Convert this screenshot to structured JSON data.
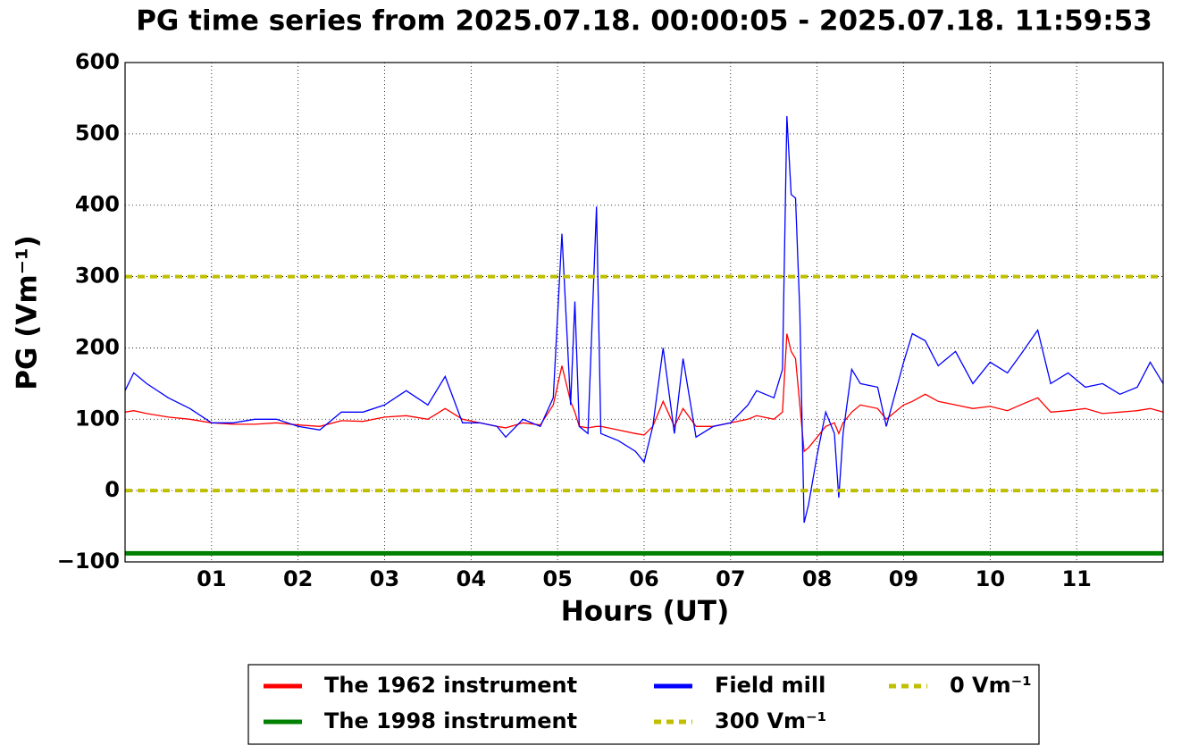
{
  "chart_data": {
    "type": "line",
    "title": "PG time series from 2025.07.18. 00:00:05 - 2025.07.18. 11:59:53",
    "xlabel": "Hours (UT)",
    "ylabel": "PG (Vm⁻¹)",
    "x": [
      0,
      0.1,
      0.25,
      0.5,
      0.75,
      1.0,
      1.25,
      1.5,
      1.75,
      2.0,
      2.25,
      2.5,
      2.75,
      3.0,
      3.25,
      3.5,
      3.7,
      3.9,
      4.1,
      4.3,
      4.4,
      4.6,
      4.8,
      4.95,
      5.05,
      5.15,
      5.2,
      5.25,
      5.35,
      5.45,
      5.5,
      5.7,
      5.9,
      6.0,
      6.1,
      6.22,
      6.35,
      6.45,
      6.6,
      6.8,
      7.0,
      7.2,
      7.3,
      7.5,
      7.6,
      7.65,
      7.7,
      7.75,
      7.8,
      7.85,
      7.9,
      8.0,
      8.1,
      8.2,
      8.25,
      8.3,
      8.4,
      8.5,
      8.7,
      8.8,
      9.0,
      9.1,
      9.25,
      9.4,
      9.6,
      9.8,
      10.0,
      10.2,
      10.35,
      10.55,
      10.7,
      10.9,
      11.1,
      11.3,
      11.5,
      11.7,
      11.85,
      12.0
    ],
    "series": [
      {
        "name": "The 1962 instrument",
        "color": "#ff0000",
        "style": "solid",
        "values": [
          110,
          112,
          108,
          103,
          100,
          95,
          93,
          93,
          95,
          92,
          90,
          98,
          97,
          103,
          105,
          100,
          115,
          100,
          95,
          90,
          88,
          95,
          92,
          120,
          175,
          125,
          110,
          90,
          88,
          90,
          90,
          85,
          80,
          78,
          90,
          125,
          90,
          115,
          90,
          90,
          95,
          100,
          105,
          100,
          110,
          220,
          195,
          185,
          120,
          55,
          60,
          75,
          90,
          95,
          80,
          95,
          110,
          120,
          115,
          100,
          120,
          125,
          135,
          125,
          120,
          115,
          118,
          112,
          120,
          130,
          110,
          112,
          115,
          108,
          110,
          112,
          115,
          110
        ]
      },
      {
        "name": "The 1998 instrument",
        "color": "#008000",
        "style": "solid",
        "x": [
          0,
          12
        ],
        "values": [
          -88,
          -88
        ]
      },
      {
        "name": "Field mill",
        "color": "#0000ff",
        "style": "solid",
        "values": [
          140,
          165,
          150,
          130,
          115,
          95,
          95,
          100,
          100,
          90,
          85,
          110,
          110,
          120,
          140,
          120,
          160,
          95,
          95,
          90,
          75,
          100,
          90,
          130,
          360,
          120,
          265,
          90,
          80,
          398,
          80,
          70,
          55,
          40,
          90,
          200,
          80,
          185,
          75,
          90,
          95,
          120,
          140,
          130,
          170,
          525,
          415,
          410,
          250,
          -45,
          -20,
          50,
          110,
          80,
          -10,
          80,
          170,
          150,
          145,
          90,
          180,
          220,
          210,
          175,
          195,
          150,
          180,
          165,
          190,
          225,
          150,
          165,
          145,
          150,
          135,
          145,
          180,
          150
        ]
      },
      {
        "name": "300 Vm⁻¹",
        "color": "#bfbf00",
        "style": "dotted",
        "x": [
          0,
          12
        ],
        "values": [
          300,
          300
        ]
      },
      {
        "name": "0 Vm⁻¹",
        "color": "#bfbf00",
        "style": "dotted",
        "x": [
          0,
          12
        ],
        "values": [
          0,
          0
        ]
      }
    ],
    "xlim": [
      0,
      12
    ],
    "xticks": [
      {
        "value": 1,
        "label": "01"
      },
      {
        "value": 2,
        "label": "02"
      },
      {
        "value": 3,
        "label": "03"
      },
      {
        "value": 4,
        "label": "04"
      },
      {
        "value": 5,
        "label": "05"
      },
      {
        "value": 6,
        "label": "06"
      },
      {
        "value": 7,
        "label": "07"
      },
      {
        "value": 8,
        "label": "08"
      },
      {
        "value": 9,
        "label": "09"
      },
      {
        "value": 10,
        "label": "10"
      },
      {
        "value": 11,
        "label": "11"
      }
    ],
    "ylim": [
      -100,
      600
    ],
    "yticks": [
      {
        "value": -100,
        "label": "−100"
      },
      0,
      100,
      200,
      300,
      400,
      500,
      600
    ],
    "grid": true,
    "legend": "below"
  }
}
